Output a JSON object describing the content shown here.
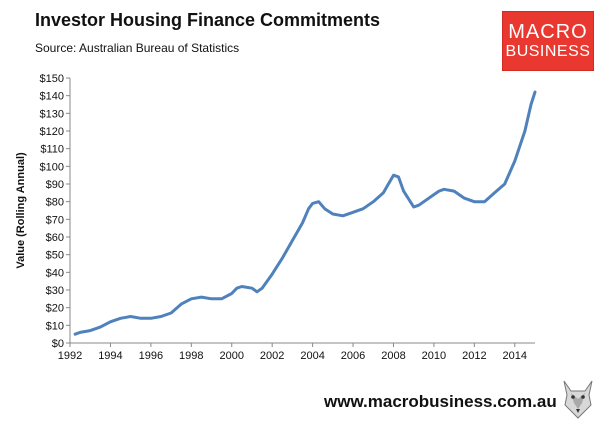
{
  "header": {
    "title": "Investor Housing Finance Commitments",
    "subtitle": "Source: Australian Bureau of Statistics"
  },
  "logo": {
    "line1": "MACRO",
    "line2": "BUSINESS",
    "background": "#e8382f",
    "icon": "macrobusiness-logo"
  },
  "footer": {
    "url": "www.macrobusiness.com.au",
    "icon": "wolf-mascot-icon"
  },
  "colors": {
    "line": "#4f81bd",
    "axis": "#888888",
    "text": "#111111"
  },
  "chart_data": {
    "type": "line",
    "title": "Investor Housing Finance Commitments",
    "xlabel": "",
    "ylabel": "Value (Rolling Annual)",
    "xlim": [
      1992,
      2015
    ],
    "ylim": [
      0,
      150
    ],
    "grid": false,
    "legend": "none",
    "x_ticks": [
      1992,
      1994,
      1996,
      1998,
      2000,
      2002,
      2004,
      2006,
      2008,
      2010,
      2012,
      2014
    ],
    "x_tick_labels": [
      "1992",
      "1994",
      "1996",
      "1998",
      "2000",
      "2002",
      "2004",
      "2006",
      "2008",
      "2010",
      "2012",
      "2014"
    ],
    "y_ticks": [
      0,
      10,
      20,
      30,
      40,
      50,
      60,
      70,
      80,
      90,
      100,
      110,
      120,
      130,
      140,
      150
    ],
    "y_tick_labels": [
      "$0",
      "$10",
      "$20",
      "$30",
      "$40",
      "$50",
      "$60",
      "$70",
      "$80",
      "$90",
      "$100",
      "$110",
      "$120",
      "$130",
      "$140",
      "$150"
    ],
    "series": [
      {
        "name": "Investor Housing Finance Commitments",
        "x": [
          1992.25,
          1992.5,
          1993.0,
          1993.5,
          1994.0,
          1994.5,
          1995.0,
          1995.5,
          1996.0,
          1996.5,
          1997.0,
          1997.5,
          1998.0,
          1998.5,
          1999.0,
          1999.5,
          2000.0,
          2000.25,
          2000.5,
          2001.0,
          2001.25,
          2001.5,
          2002.0,
          2002.5,
          2003.0,
          2003.5,
          2003.8,
          2004.0,
          2004.3,
          2004.6,
          2005.0,
          2005.5,
          2006.0,
          2006.5,
          2007.0,
          2007.5,
          2007.75,
          2008.0,
          2008.25,
          2008.5,
          2009.0,
          2009.25,
          2009.5,
          2010.0,
          2010.25,
          2010.5,
          2011.0,
          2011.5,
          2012.0,
          2012.5,
          2013.0,
          2013.5,
          2014.0,
          2014.5,
          2014.8,
          2015.0
        ],
        "values": [
          5,
          6,
          7,
          9,
          12,
          14,
          15,
          14,
          14,
          15,
          17,
          22,
          25,
          26,
          25,
          25,
          28,
          31,
          32,
          31,
          29,
          31,
          39,
          48,
          58,
          68,
          76,
          79,
          80,
          76,
          73,
          72,
          74,
          76,
          80,
          85,
          90,
          95,
          94,
          86,
          77,
          78,
          80,
          84,
          86,
          87,
          86,
          82,
          80,
          80,
          85,
          90,
          103,
          120,
          135,
          142
        ]
      }
    ]
  }
}
